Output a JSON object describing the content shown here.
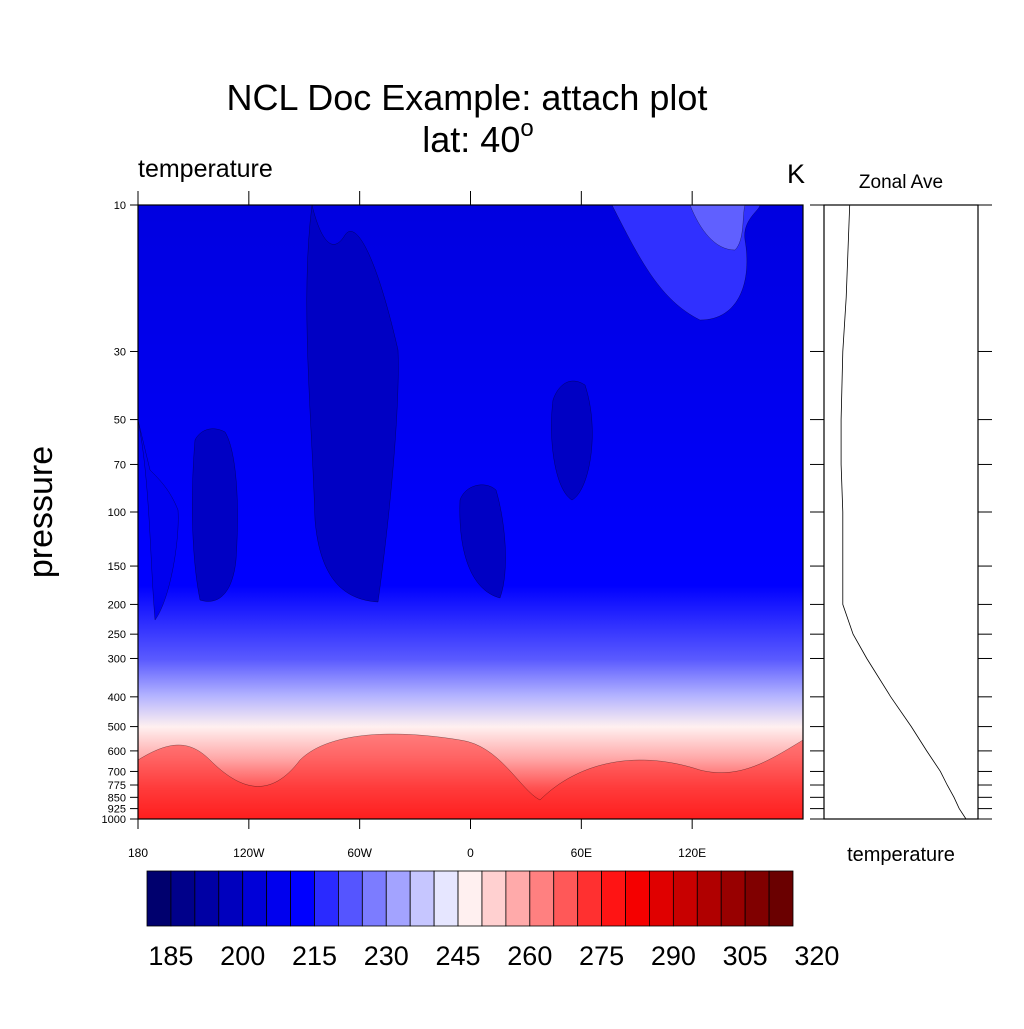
{
  "chart_data": [
    {
      "type": "contour",
      "title": "NCL Doc Example: attach plot",
      "subtitle_prefix": "lat: 40",
      "subtitle_superscript": "o",
      "left_label": "temperature",
      "right_label": "K",
      "ylabel": "pressure",
      "y_scale": "log",
      "y_reversed": true,
      "ylim": [
        10,
        1000
      ],
      "y_ticks": [
        "10",
        "30",
        "50",
        "70",
        "100",
        "150",
        "200",
        "250",
        "300",
        "400",
        "500",
        "600",
        "700",
        "775",
        "850",
        "925",
        "1000"
      ],
      "xlim": [
        -180,
        180
      ],
      "x_ticks": [
        "180",
        "120W",
        "60W",
        "0",
        "60E",
        "120E"
      ],
      "colorbar": {
        "levels": [
          185,
          190,
          195,
          200,
          205,
          210,
          215,
          220,
          225,
          230,
          235,
          240,
          245,
          250,
          255,
          260,
          265,
          270,
          275,
          280,
          285,
          290,
          295,
          300,
          305,
          310,
          315,
          320
        ],
        "labels": [
          "185",
          "200",
          "215",
          "230",
          "245",
          "260",
          "275",
          "290",
          "305",
          "320"
        ],
        "colors": [
          "#00006e",
          "#00008a",
          "#0000a4",
          "#0000be",
          "#0000d8",
          "#0000ee",
          "#0000ff",
          "#2a2aff",
          "#5555ff",
          "#7c7cff",
          "#a3a3ff",
          "#c6c6ff",
          "#e6e6ff",
          "#fff0f0",
          "#ffd0d0",
          "#ffaaaa",
          "#ff8080",
          "#ff5858",
          "#ff3030",
          "#ff1414",
          "#f50000",
          "#e00000",
          "#c80000",
          "#b00000",
          "#980000",
          "#800000",
          "#6a0000"
        ]
      }
    },
    {
      "type": "line",
      "title": "Zonal Ave",
      "xlabel": "temperature",
      "y_scale": "log",
      "y_reversed": true,
      "ylim": [
        10,
        1000
      ],
      "series": [
        {
          "p": [
            10,
            20,
            30,
            50,
            70,
            100,
            150,
            200,
            250,
            300,
            400,
            500,
            600,
            700,
            775,
            850,
            925,
            1000
          ],
          "t": [
            215,
            213,
            211,
            210,
            210,
            211,
            211,
            211,
            217,
            225,
            239,
            251,
            260,
            268,
            272,
            276,
            279,
            283
          ]
        }
      ]
    }
  ]
}
